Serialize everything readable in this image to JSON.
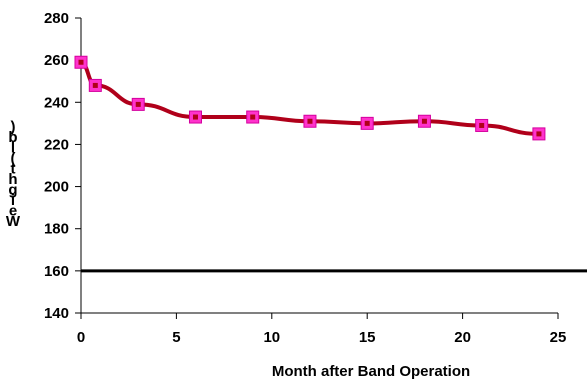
{
  "chart_data": {
    "type": "line",
    "title": "",
    "xlabel": "Month after Band Operation",
    "ylabel": "Weight (lb)",
    "xlim": [
      0,
      25
    ],
    "ylim": [
      140,
      280
    ],
    "x_ticks": [
      "0",
      "5",
      "10",
      "15",
      "20",
      "25"
    ],
    "y_ticks": [
      "140",
      "160",
      "180",
      "200",
      "220",
      "240",
      "260",
      "280"
    ],
    "grid": false,
    "series": [
      {
        "x": [
          0,
          0.75,
          3,
          6,
          9,
          12,
          15,
          18,
          21,
          24
        ],
        "y": [
          259,
          248,
          239,
          233,
          233,
          231,
          230,
          231,
          229,
          225
        ],
        "line_color": "#b0001a",
        "marker_color": "#ff33cc",
        "marker_center_color": "#b0001a"
      }
    ],
    "reference_line": {
      "y": 160,
      "color": "#000000"
    }
  }
}
